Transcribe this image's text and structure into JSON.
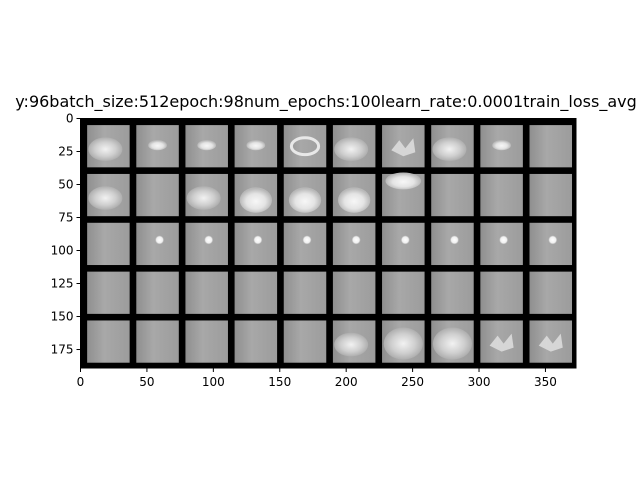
{
  "chart_data": {
    "type": "image-grid",
    "title": "y:96batch_size:512epoch:98num_epochs:100learn_rate:0.0001train_loss_avg",
    "xlabel": "",
    "ylabel": "",
    "xlim": [
      0,
      373
    ],
    "ylim": [
      189,
      0
    ],
    "x_ticks": [
      0,
      50,
      100,
      150,
      200,
      250,
      300,
      350
    ],
    "y_ticks": [
      0,
      25,
      50,
      75,
      100,
      125,
      150,
      175
    ],
    "x_tick_labels": [
      "0",
      "50",
      "100",
      "150",
      "200",
      "250",
      "300",
      "350"
    ],
    "y_tick_labels": [
      "0",
      "25",
      "50",
      "75",
      "100",
      "125",
      "150",
      "175"
    ],
    "grid": false,
    "rows": 5,
    "cols": 10,
    "tile_size": 32,
    "padding": 5,
    "tiles": [
      [
        "cloud",
        "small-blob",
        "small-blob",
        "small-blob",
        "ring",
        "cloud",
        "spiky",
        "cloud",
        "small-blob",
        "faint"
      ],
      [
        "cloud",
        "faint",
        "cloud",
        "blob-bright",
        "blob-bright",
        "blob-bright",
        "top-bright",
        "faint",
        "faint",
        "faint"
      ],
      [
        "faint",
        "dot",
        "dot",
        "dot",
        "dot",
        "dot",
        "dot",
        "dot",
        "dot",
        "dot"
      ],
      [
        "faint",
        "faint",
        "faint",
        "faint",
        "faint",
        "faint",
        "faint",
        "faint",
        "faint",
        "faint"
      ],
      [
        "faint",
        "faint",
        "faint",
        "faint",
        "faint",
        "cloud",
        "big-cloud",
        "big-cloud",
        "spiky",
        "spiky"
      ]
    ]
  }
}
